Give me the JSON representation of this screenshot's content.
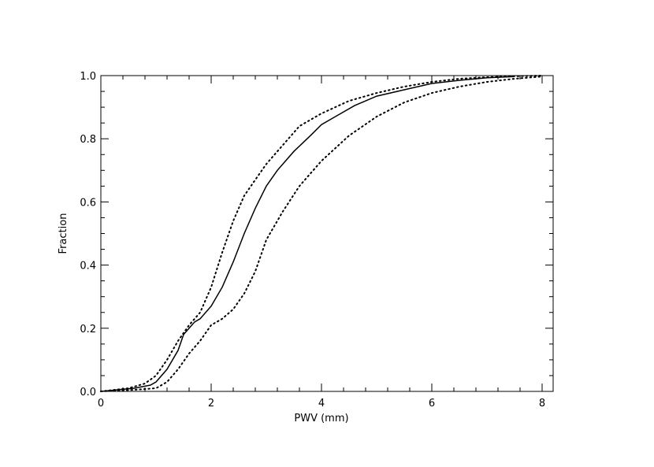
{
  "chart_data": {
    "type": "line",
    "title": "",
    "xlabel": "PWV (mm)",
    "ylabel": "Fraction",
    "xlim": [
      0,
      8.2
    ],
    "ylim": [
      0,
      1.0
    ],
    "xticks": [
      "0",
      "2",
      "4",
      "6",
      "8"
    ],
    "xtick_values": [
      0,
      2,
      4,
      6,
      8
    ],
    "yticks": [
      "0.0",
      "0.2",
      "0.4",
      "0.6",
      "0.8",
      "1.0"
    ],
    "ytick_values": [
      0.0,
      0.2,
      0.4,
      0.6,
      0.8,
      1.0
    ],
    "grid": false,
    "series": [
      {
        "style": "solid",
        "x": [
          0.0,
          0.3,
          0.6,
          0.9,
          1.0,
          1.2,
          1.4,
          1.5,
          1.6,
          1.7,
          1.8,
          2.0,
          2.2,
          2.4,
          2.6,
          2.8,
          3.0,
          3.2,
          3.5,
          3.8,
          4.0,
          4.3,
          4.6,
          5.0,
          5.5,
          6.0,
          6.5,
          7.0,
          7.5
        ],
        "y": [
          0.0,
          0.005,
          0.01,
          0.02,
          0.03,
          0.07,
          0.13,
          0.18,
          0.2,
          0.22,
          0.23,
          0.27,
          0.33,
          0.41,
          0.5,
          0.58,
          0.65,
          0.7,
          0.76,
          0.81,
          0.845,
          0.875,
          0.905,
          0.935,
          0.955,
          0.975,
          0.985,
          0.993,
          0.997
        ]
      },
      {
        "style": "dotted",
        "x": [
          0.0,
          0.5,
          0.8,
          1.0,
          1.2,
          1.4,
          1.6,
          1.8,
          2.0,
          2.2,
          2.4,
          2.6,
          2.8,
          3.0,
          3.3,
          3.6,
          4.0,
          4.5,
          5.0,
          5.5,
          6.0,
          6.5,
          7.0,
          7.5,
          8.0
        ],
        "y": [
          0.0,
          0.01,
          0.025,
          0.05,
          0.1,
          0.16,
          0.21,
          0.25,
          0.33,
          0.44,
          0.54,
          0.62,
          0.67,
          0.72,
          0.78,
          0.84,
          0.88,
          0.92,
          0.945,
          0.965,
          0.98,
          0.99,
          0.995,
          0.998,
          1.0
        ]
      },
      {
        "style": "dotted",
        "x": [
          0.0,
          0.6,
          1.0,
          1.2,
          1.4,
          1.6,
          1.8,
          2.0,
          2.2,
          2.4,
          2.6,
          2.8,
          3.0,
          3.3,
          3.6,
          4.0,
          4.5,
          5.0,
          5.5,
          6.0,
          6.5,
          7.0,
          7.5,
          8.0
        ],
        "y": [
          0.0,
          0.005,
          0.01,
          0.03,
          0.07,
          0.12,
          0.16,
          0.21,
          0.23,
          0.26,
          0.31,
          0.38,
          0.48,
          0.57,
          0.65,
          0.73,
          0.81,
          0.87,
          0.915,
          0.945,
          0.965,
          0.98,
          0.99,
          0.997
        ]
      }
    ]
  }
}
